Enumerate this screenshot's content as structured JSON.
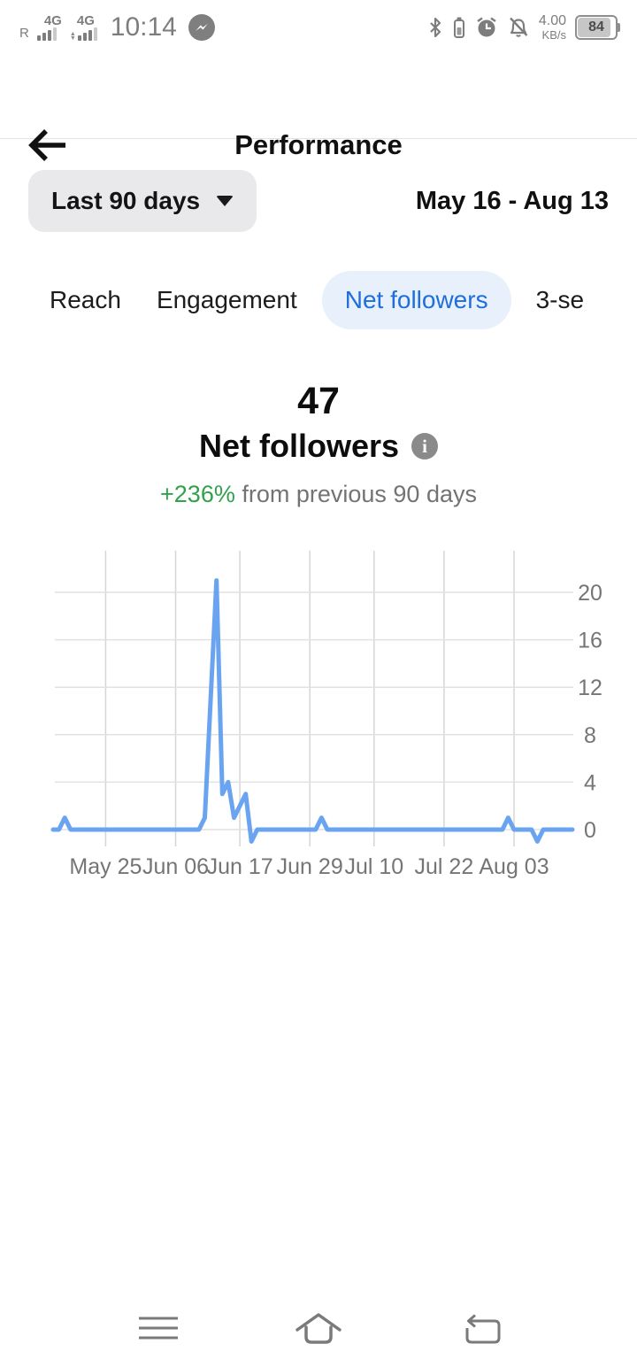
{
  "status_bar": {
    "roaming": "R",
    "sim1_network": "4G",
    "sim2_network": "4G",
    "time": "10:14",
    "speed_value": "4.00",
    "speed_unit": "KB/s",
    "battery_level": "84",
    "icons": [
      "messenger-bolt",
      "bluetooth",
      "bt-device-battery",
      "alarm-clock",
      "bell-slash",
      "battery"
    ]
  },
  "header": {
    "title": "Performance",
    "back_icon": "arrow-left"
  },
  "filter": {
    "period_label": "Last 90 days",
    "dropdown_icon": "caret-down",
    "date_range": "May 16 - Aug 13"
  },
  "tabs": [
    {
      "label": "Reach",
      "selected": false
    },
    {
      "label": "Engagement",
      "selected": false
    },
    {
      "label": "Net followers",
      "selected": true
    },
    {
      "label": "3-se",
      "selected": false
    }
  ],
  "metric": {
    "value": "47",
    "label": "Net followers",
    "info_glyph": "i",
    "change": "+236%",
    "change_context": "from previous 90 days"
  },
  "chart_data": {
    "type": "line",
    "xlabel": "",
    "ylabel": "",
    "x_start_date": "May 16",
    "x_end_date": "Aug 13",
    "x_unit": "day",
    "ylim": [
      -1.5,
      22.5
    ],
    "grid": true,
    "y_axis_position": "right",
    "legend": "none",
    "line_color": "#6aa4f0",
    "y_ticks": [
      0,
      4,
      8,
      12,
      16,
      20
    ],
    "x_ticks": [
      {
        "label": "May 25",
        "day": 9
      },
      {
        "label": "Jun 06",
        "day": 21
      },
      {
        "label": "Jun 17",
        "day": 32
      },
      {
        "label": "Jun 29",
        "day": 44
      },
      {
        "label": "Jul 10",
        "day": 55
      },
      {
        "label": "Jul 22",
        "day": 67
      },
      {
        "label": "Aug 03",
        "day": 79
      }
    ],
    "series": [
      {
        "name": "Net followers per day",
        "values": [
          0,
          0,
          1,
          0,
          0,
          0,
          0,
          0,
          0,
          0,
          0,
          0,
          0,
          0,
          0,
          0,
          0,
          0,
          0,
          0,
          0,
          0,
          0,
          0,
          0,
          0,
          1,
          11,
          21,
          3,
          4,
          1,
          2,
          3,
          -1,
          0,
          0,
          0,
          0,
          0,
          0,
          0,
          0,
          0,
          0,
          0,
          1,
          0,
          0,
          0,
          0,
          0,
          0,
          0,
          0,
          0,
          0,
          0,
          0,
          0,
          0,
          0,
          0,
          0,
          0,
          0,
          0,
          0,
          0,
          0,
          0,
          0,
          0,
          0,
          0,
          0,
          0,
          0,
          1,
          0,
          0,
          0,
          0,
          -1,
          0,
          0,
          0,
          0,
          0,
          0
        ]
      }
    ]
  },
  "bottom_nav": {
    "items": [
      "menu",
      "home",
      "back"
    ]
  },
  "colors": {
    "accent_blue": "#1e6fd9",
    "tab_pill_bg": "#e7f0fb",
    "positive_green": "#31a24c",
    "chart_line": "#6aa4f0",
    "grid_line": "#e0e0e0",
    "secondary_text": "#757575",
    "button_bg": "#e9e9eb"
  }
}
